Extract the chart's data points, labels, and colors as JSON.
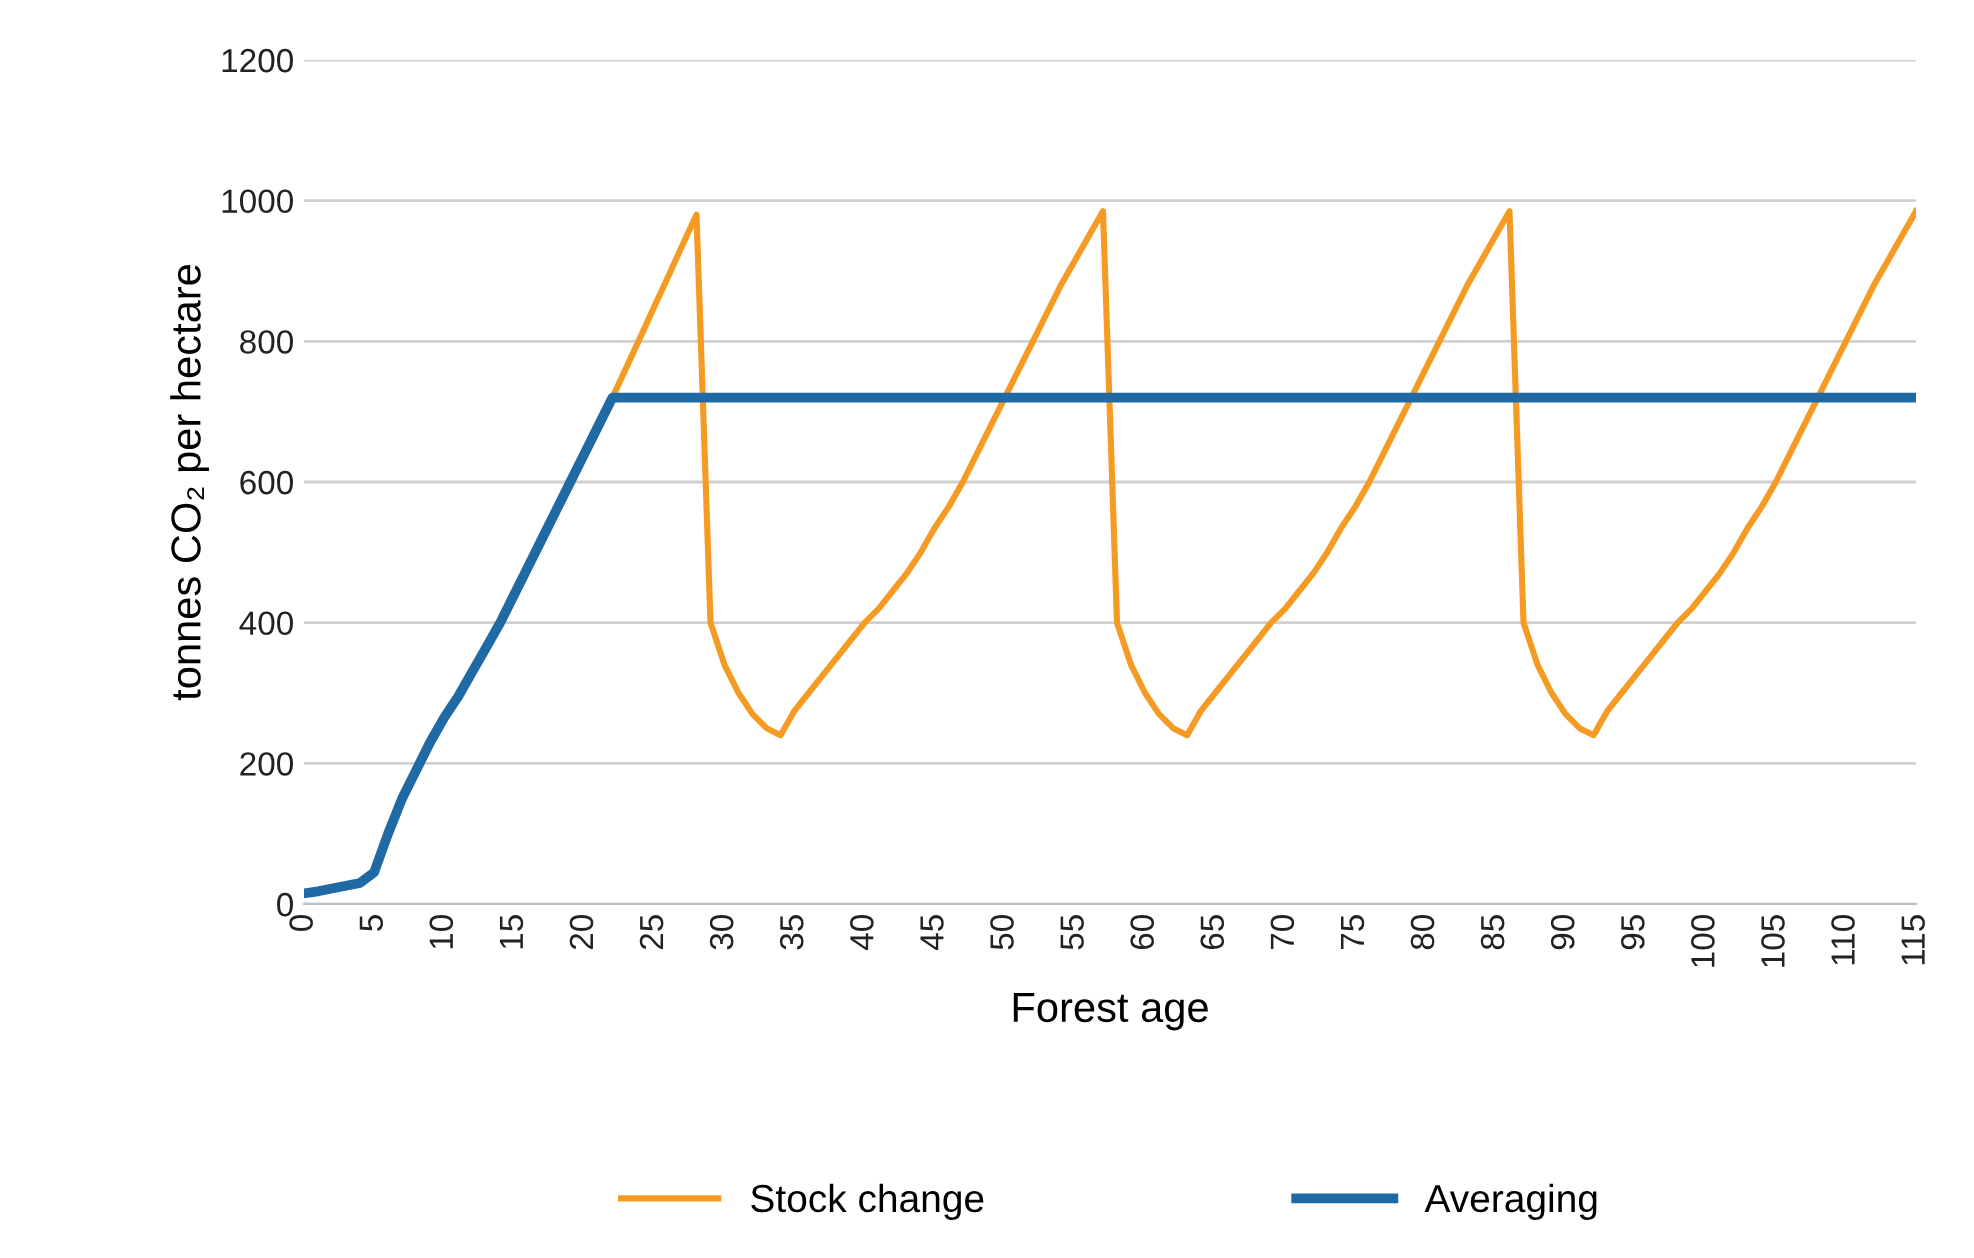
{
  "chart_data": {
    "type": "line",
    "xlabel": "Forest age",
    "ylabel": "tonnes CO₂ per hectare",
    "x": [
      0,
      1,
      2,
      3,
      4,
      5,
      6,
      7,
      8,
      9,
      10,
      11,
      12,
      13,
      14,
      15,
      16,
      17,
      18,
      19,
      20,
      21,
      22,
      23,
      24,
      25,
      26,
      27,
      28,
      29,
      30,
      31,
      32,
      33,
      34,
      35,
      36,
      37,
      38,
      39,
      40,
      41,
      42,
      43,
      44,
      45,
      46,
      47,
      48,
      49,
      50,
      51,
      52,
      53,
      54,
      55,
      56,
      57,
      58,
      59,
      60,
      61,
      62,
      63,
      64,
      65,
      66,
      67,
      68,
      69,
      70,
      71,
      72,
      73,
      74,
      75,
      76,
      77,
      78,
      79,
      80,
      81,
      82,
      83,
      84,
      85,
      86,
      87,
      88,
      89,
      90,
      91,
      92,
      93,
      94,
      95,
      96,
      97,
      98,
      99,
      100,
      101,
      102,
      103,
      104,
      105,
      106,
      107,
      108,
      109,
      110,
      111,
      112,
      113,
      114,
      115
    ],
    "series": [
      {
        "name": "Stock change",
        "color": "#f59a23",
        "values": [
          null,
          null,
          null,
          null,
          null,
          null,
          null,
          null,
          null,
          null,
          null,
          null,
          null,
          null,
          null,
          null,
          null,
          null,
          null,
          null,
          null,
          null,
          720,
          763,
          806,
          850,
          893,
          937,
          980,
          400,
          340,
          300,
          270,
          250,
          240,
          275,
          300,
          325,
          350,
          375,
          400,
          420,
          445,
          470,
          500,
          535,
          565,
          600,
          640,
          680,
          720,
          760,
          800,
          840,
          880,
          915,
          950,
          985,
          400,
          340,
          300,
          270,
          250,
          240,
          275,
          300,
          325,
          350,
          375,
          400,
          420,
          445,
          470,
          500,
          535,
          565,
          600,
          640,
          680,
          720,
          760,
          800,
          840,
          880,
          915,
          950,
          985,
          400,
          340,
          300,
          270,
          250,
          240,
          275,
          300,
          325,
          350,
          375,
          400,
          420,
          445,
          470,
          500,
          535,
          565,
          600,
          640,
          680,
          720,
          760,
          800,
          840,
          880,
          915,
          950,
          985
        ]
      },
      {
        "name": "Averaging",
        "color": "#1f6aa5",
        "values": [
          15,
          18,
          22,
          26,
          30,
          45,
          100,
          150,
          190,
          230,
          265,
          295,
          330,
          365,
          400,
          440,
          480,
          520,
          560,
          600,
          640,
          680,
          720,
          720,
          720,
          720,
          720,
          720,
          720,
          720,
          720,
          720,
          720,
          720,
          720,
          720,
          720,
          720,
          720,
          720,
          720,
          720,
          720,
          720,
          720,
          720,
          720,
          720,
          720,
          720,
          720,
          720,
          720,
          720,
          720,
          720,
          720,
          720,
          720,
          720,
          720,
          720,
          720,
          720,
          720,
          720,
          720,
          720,
          720,
          720,
          720,
          720,
          720,
          720,
          720,
          720,
          720,
          720,
          720,
          720,
          720,
          720,
          720,
          720,
          720,
          720,
          720,
          720,
          720,
          720,
          720,
          720,
          720,
          720,
          720,
          720,
          720,
          720,
          720,
          720,
          720,
          720,
          720,
          720,
          720,
          720,
          720,
          720,
          720,
          720,
          720,
          720,
          720,
          720,
          720,
          720
        ]
      }
    ],
    "xlim": [
      0,
      115
    ],
    "xticks": [
      0,
      5,
      10,
      15,
      20,
      25,
      30,
      35,
      40,
      45,
      50,
      55,
      60,
      65,
      70,
      75,
      80,
      85,
      90,
      95,
      100,
      105,
      110,
      115
    ],
    "ylim": [
      0,
      1200
    ],
    "yticks": [
      0,
      200,
      400,
      600,
      800,
      1000,
      1200
    ],
    "grid": "y",
    "legend": "bottom",
    "marker": "none",
    "line_style": "solid"
  }
}
